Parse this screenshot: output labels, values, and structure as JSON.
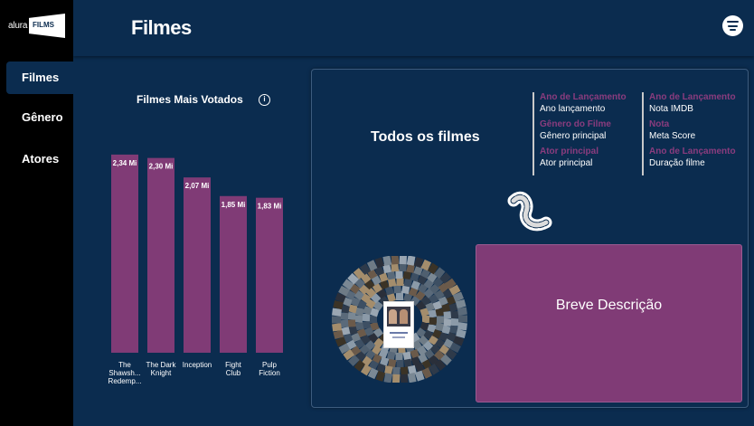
{
  "app": {
    "logo_small": "alura",
    "logo_films": "FILMS"
  },
  "sidebar": {
    "items": [
      {
        "label": "Filmes",
        "active": true
      },
      {
        "label": "Gênero",
        "active": false
      },
      {
        "label": "Atores",
        "active": false
      }
    ]
  },
  "header": {
    "title": "Filmes",
    "menu_icon": "hamburger-menu-icon"
  },
  "chart_card": {
    "info_icon": "info-icon",
    "info_glyph": "i"
  },
  "chart_data": {
    "type": "bar",
    "title": "Filmes Mais Votados",
    "categories": [
      "The Shawsh... Redemp...",
      "The Dark Knight",
      "Inception",
      "Fight Club",
      "Pulp Fiction"
    ],
    "category_lines": [
      [
        "The",
        "Shawsh...",
        "Redemp..."
      ],
      [
        "The Dark",
        "Knight"
      ],
      [
        "Inception"
      ],
      [
        "Fight",
        "Club"
      ],
      [
        "Pulp",
        "Fiction"
      ]
    ],
    "values": [
      2.34,
      2.3,
      2.07,
      1.85,
      1.83
    ],
    "value_labels": [
      "2,34 Mi",
      "2,30 Mi",
      "2,07 Mi",
      "1,85 Mi",
      "1,83 Mi"
    ],
    "ylim": [
      0,
      2.5
    ],
    "bar_color": "#803b76",
    "grid": false,
    "xlabel": "",
    "ylabel": ""
  },
  "panel": {
    "title": "Todos os filmes",
    "filters_left": [
      {
        "label": "Ano de Lançamento",
        "value": "Ano lançamento"
      },
      {
        "label": "Gênero do Filme",
        "value": "Gênero principal"
      },
      {
        "label": "Ator principal",
        "value": "Ator principal"
      }
    ],
    "filters_right": [
      {
        "label": "Ano de Lançamento",
        "value": "Nota IMDB"
      },
      {
        "label": "Nota",
        "value": "Meta Score"
      },
      {
        "label": "Ano de Lançamento",
        "value": "Duração filme"
      }
    ],
    "film_icon": "film-reel-icon",
    "description": "Breve Descrição"
  },
  "colors": {
    "background": "#0b2c4f",
    "sidebar": "#000000",
    "accent": "#803b76",
    "filter_label": "#8a3c7e"
  }
}
